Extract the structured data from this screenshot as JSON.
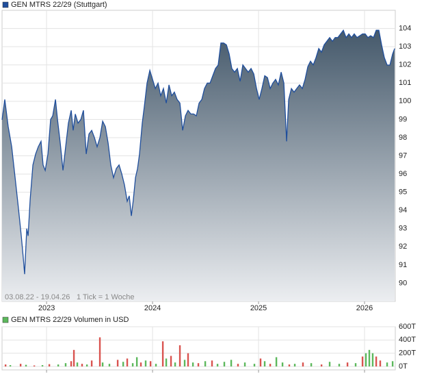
{
  "chart_data": [
    {
      "type": "area",
      "annotations": [
        "03.08.22 - 19.04.26",
        "1 Tick = 1 Woche"
      ],
      "xlim": [
        2022.58,
        2026.29
      ],
      "xticks": [
        2023,
        2024,
        2025,
        2026
      ],
      "ylim": [
        89,
        105
      ],
      "yticks": [
        90,
        91,
        92,
        93,
        94,
        95,
        96,
        97,
        98,
        99,
        100,
        101,
        102,
        103,
        104
      ],
      "grid": true,
      "series": [
        {
          "name": "GEN MTRS 22/29 (Stuttgart)",
          "color": "#1f4e9c",
          "fill_top": "#45596b",
          "fill_bottom": "#eceef1",
          "x": [
            2022.58,
            2022.606,
            2022.638,
            2022.671,
            2022.703,
            2022.735,
            2022.761,
            2022.78,
            2022.793,
            2022.813,
            2022.826,
            2022.845,
            2022.871,
            2022.897,
            2022.922,
            2022.948,
            2022.967,
            2022.987,
            2023.013,
            2023.038,
            2023.058,
            2023.084,
            2023.103,
            2023.129,
            2023.155,
            2023.18,
            2023.206,
            2023.232,
            2023.251,
            2023.271,
            2023.297,
            2023.323,
            2023.348,
            2023.374,
            2023.4,
            2023.426,
            2023.452,
            2023.477,
            2023.503,
            2023.529,
            2023.555,
            2023.581,
            2023.606,
            2023.632,
            2023.658,
            2023.684,
            2023.71,
            2023.735,
            2023.761,
            2023.78,
            2023.8,
            2023.819,
            2023.839,
            2023.858,
            2023.877,
            2023.903,
            2023.922,
            2023.948,
            2023.974,
            2024.0,
            2024.026,
            2024.052,
            2024.077,
            2024.103,
            2024.129,
            2024.155,
            2024.181,
            2024.206,
            2024.232,
            2024.258,
            2024.284,
            2024.31,
            2024.335,
            2024.361,
            2024.387,
            2024.413,
            2024.439,
            2024.465,
            2024.49,
            2024.516,
            2024.542,
            2024.568,
            2024.594,
            2024.619,
            2024.645,
            2024.671,
            2024.697,
            2024.723,
            2024.748,
            2024.774,
            2024.8,
            2024.826,
            2024.852,
            2024.877,
            2024.903,
            2024.929,
            2024.955,
            2024.981,
            2025.006,
            2025.032,
            2025.058,
            2025.084,
            2025.11,
            2025.135,
            2025.161,
            2025.187,
            2025.213,
            2025.239,
            2025.265,
            2025.284,
            2025.31,
            2025.335,
            2025.361,
            2025.387,
            2025.413,
            2025.439,
            2025.465,
            2025.49,
            2025.516,
            2025.542,
            2025.568,
            2025.594,
            2025.619,
            2025.645,
            2025.671,
            2025.697,
            2025.723,
            2025.748,
            2025.774,
            2025.8,
            2025.826,
            2025.852,
            2025.877,
            2025.903,
            2025.929,
            2025.955,
            2025.981,
            2026.006,
            2026.032,
            2026.058,
            2026.084,
            2026.11,
            2026.135,
            2026.161,
            2026.187,
            2026.213,
            2026.239,
            2026.265,
            2026.284
          ],
          "values": [
            98.98,
            100.1,
            98.6,
            97.5,
            95.8,
            94.1,
            92.6,
            91.4,
            90.5,
            93.0,
            92.6,
            94.6,
            96.5,
            97.1,
            97.5,
            97.8,
            96.5,
            96.2,
            97.1,
            99.0,
            99.2,
            100.1,
            99.0,
            97.7,
            96.2,
            97.5,
            98.8,
            99.5,
            98.4,
            99.3,
            98.8,
            99.0,
            99.5,
            97.1,
            98.2,
            98.4,
            98.0,
            97.5,
            98.0,
            98.9,
            98.6,
            97.7,
            96.5,
            95.8,
            96.3,
            96.5,
            96.0,
            95.4,
            94.5,
            94.8,
            93.7,
            94.6,
            95.8,
            96.3,
            97.1,
            98.8,
            99.7,
            101.0,
            101.7,
            101.2,
            100.7,
            101.0,
            100.3,
            100.7,
            99.9,
            100.9,
            100.3,
            100.5,
            100.1,
            99.9,
            98.4,
            99.2,
            99.5,
            99.3,
            99.3,
            99.2,
            99.9,
            100.1,
            100.7,
            101.0,
            101.0,
            101.4,
            101.8,
            101.99,
            103.2,
            103.2,
            103.1,
            102.6,
            101.8,
            101.6,
            101.8,
            101.1,
            102.0,
            101.8,
            101.6,
            101.8,
            101.5,
            100.7,
            100.1,
            100.7,
            101.4,
            101.3,
            100.7,
            101.0,
            101.2,
            100.9,
            101.6,
            101.0,
            97.8,
            100.1,
            100.7,
            100.5,
            100.7,
            100.9,
            100.7,
            101.2,
            101.9,
            102.2,
            102.0,
            102.4,
            102.9,
            102.7,
            103.1,
            103.3,
            103.5,
            103.3,
            103.5,
            103.5,
            103.7,
            103.9,
            103.5,
            103.7,
            103.5,
            103.7,
            103.5,
            103.6,
            103.7,
            103.7,
            103.5,
            103.6,
            103.5,
            103.9,
            103.9,
            103.1,
            102.4,
            101.99,
            101.99,
            102.6,
            102.9
          ]
        }
      ]
    },
    {
      "type": "bar",
      "xlim": [
        2022.58,
        2026.29
      ],
      "xticks": [
        2023,
        2024,
        2025,
        2026
      ],
      "ylim": [
        0,
        600
      ],
      "yticks": [
        {
          "value": 0,
          "label": "0T"
        },
        {
          "value": 200,
          "label": "200T"
        },
        {
          "value": 400,
          "label": "400T"
        },
        {
          "value": 600,
          "label": "600T"
        }
      ],
      "grid": true,
      "series": [
        {
          "name": "GEN MTRS 22/29 Volumen in USD",
          "color": "#5cb85c",
          "x": [
            2022.613,
            2022.658,
            2022.755,
            2022.806,
            2022.884,
            2022.961,
            2023.026,
            2023.11,
            2023.18,
            2023.232,
            2023.258,
            2023.29,
            2023.335,
            2023.381,
            2023.426,
            2023.503,
            2023.529,
            2023.593,
            2023.671,
            2023.723,
            2023.761,
            2023.813,
            2023.852,
            2023.89,
            2023.935,
            2023.981,
            2024.032,
            2024.097,
            2024.129,
            2024.174,
            2024.213,
            2024.258,
            2024.303,
            2024.335,
            2024.381,
            2024.432,
            2024.497,
            2024.561,
            2024.613,
            2024.677,
            2024.742,
            2024.806,
            2024.871,
            2024.961,
            2025.019,
            2025.058,
            2025.11,
            2025.168,
            2025.226,
            2025.29,
            2025.342,
            2025.419,
            2025.497,
            2025.594,
            2025.671,
            2025.761,
            2025.839,
            2025.916,
            2025.981,
            2026.013,
            2026.045,
            2026.077,
            2026.11,
            2026.148,
            2026.213,
            2026.265
          ],
          "values": [
            30,
            20,
            40,
            25,
            15,
            20,
            35,
            30,
            50,
            80,
            250,
            60,
            40,
            30,
            90,
            440,
            60,
            40,
            100,
            70,
            120,
            50,
            140,
            60,
            90,
            80,
            40,
            380,
            120,
            160,
            60,
            320,
            100,
            200,
            60,
            50,
            80,
            90,
            40,
            70,
            100,
            40,
            60,
            40,
            120,
            80,
            40,
            140,
            60,
            30,
            40,
            60,
            50,
            30,
            70,
            40,
            60,
            50,
            150,
            200,
            250,
            200,
            150,
            90,
            60,
            80
          ],
          "colors": [
            "#d9534f",
            "#5cb85c",
            "#d9534f",
            "#5cb85c",
            "#d9534f",
            "#5cb85c",
            "#d9534f",
            "#5cb85c",
            "#5cb85c",
            "#d9534f",
            "#d9534f",
            "#5cb85c",
            "#d9534f",
            "#5cb85c",
            "#d9534f",
            "#d9534f",
            "#5cb85c",
            "#5cb85c",
            "#d9534f",
            "#5cb85c",
            "#d9534f",
            "#5cb85c",
            "#5cb85c",
            "#d9534f",
            "#5cb85c",
            "#d9534f",
            "#5cb85c",
            "#d9534f",
            "#5cb85c",
            "#d9534f",
            "#5cb85c",
            "#d9534f",
            "#5cb85c",
            "#d9534f",
            "#5cb85c",
            "#d9534f",
            "#5cb85c",
            "#d9534f",
            "#5cb85c",
            "#5cb85c",
            "#5cb85c",
            "#d9534f",
            "#5cb85c",
            "#5cb85c",
            "#d9534f",
            "#5cb85c",
            "#d9534f",
            "#5cb85c",
            "#5cb85c",
            "#d9534f",
            "#5cb85c",
            "#d9534f",
            "#5cb85c",
            "#d9534f",
            "#5cb85c",
            "#5cb85c",
            "#d9534f",
            "#5cb85c",
            "#d9534f",
            "#5cb85c",
            "#5cb85c",
            "#5cb85c",
            "#d9534f",
            "#d9534f",
            "#5cb85c",
            "#5cb85c"
          ]
        }
      ]
    }
  ]
}
